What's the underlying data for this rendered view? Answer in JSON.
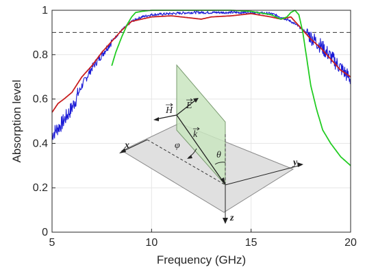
{
  "chart_data": {
    "type": "line",
    "title": "",
    "xlabel": "Frequency (GHz)",
    "ylabel": "Absorption level",
    "xlim": [
      5,
      20
    ],
    "ylim": [
      0,
      1
    ],
    "xticks": [
      "5",
      "10",
      "15",
      "20"
    ],
    "yticks": [
      "0",
      "0.2",
      "0.4",
      "0.6",
      "0.8",
      "1"
    ],
    "grid": true,
    "reference_line": {
      "y": 0.9,
      "style": "dashed",
      "color": "#333333"
    },
    "series": [
      {
        "color": "#1a1ad6",
        "style": "noisy",
        "x": [
          5,
          5.5,
          6,
          6.5,
          7,
          7.5,
          8,
          8.5,
          9,
          9.5,
          10,
          11,
          12,
          13,
          14,
          15,
          16,
          16.5,
          17,
          17.5,
          18,
          18.5,
          19,
          19.5,
          20
        ],
        "y": [
          0.44,
          0.49,
          0.56,
          0.66,
          0.74,
          0.8,
          0.86,
          0.91,
          0.95,
          0.97,
          0.98,
          0.985,
          0.99,
          0.99,
          0.99,
          0.99,
          0.985,
          0.97,
          0.95,
          0.92,
          0.88,
          0.84,
          0.79,
          0.74,
          0.69
        ]
      },
      {
        "color": "#c81e1e",
        "style": "solid",
        "x": [
          5,
          5.3,
          5.6,
          6,
          6.5,
          7,
          7.5,
          8,
          8.5,
          9,
          9.5,
          10,
          11,
          12,
          12.5,
          13,
          14,
          15,
          16,
          16.5,
          17,
          17.5,
          18,
          18.5,
          19,
          19.5,
          20
        ],
        "y": [
          0.54,
          0.58,
          0.6,
          0.63,
          0.7,
          0.75,
          0.81,
          0.86,
          0.91,
          0.95,
          0.96,
          0.97,
          0.975,
          0.965,
          0.96,
          0.97,
          0.975,
          0.985,
          0.97,
          0.96,
          0.97,
          0.92,
          0.87,
          0.83,
          0.78,
          0.73,
          0.7
        ]
      },
      {
        "color": "#22cc22",
        "style": "solid",
        "x": [
          8,
          8.2,
          8.5,
          8.8,
          9,
          9.2,
          9.5,
          10,
          11,
          12,
          13,
          14,
          15,
          16,
          16.5,
          16.8,
          17,
          17.2,
          17.4,
          17.6,
          17.8,
          18,
          18.3,
          18.6,
          19,
          19.5,
          20
        ],
        "y": [
          0.75,
          0.81,
          0.88,
          0.94,
          0.97,
          0.99,
          0.995,
          1.0,
          1.0,
          1.0,
          1.0,
          1.0,
          0.995,
          0.98,
          0.96,
          0.97,
          0.99,
          1.0,
          0.98,
          0.9,
          0.78,
          0.66,
          0.55,
          0.46,
          0.4,
          0.34,
          0.3
        ]
      }
    ]
  },
  "inset": {
    "x_axis_label": "x",
    "y_axis_label": "y",
    "z_axis_label": "z",
    "phi_label": "φ",
    "theta_label": "θ",
    "h_label": "H",
    "e_label": "E",
    "k_label": "k"
  }
}
